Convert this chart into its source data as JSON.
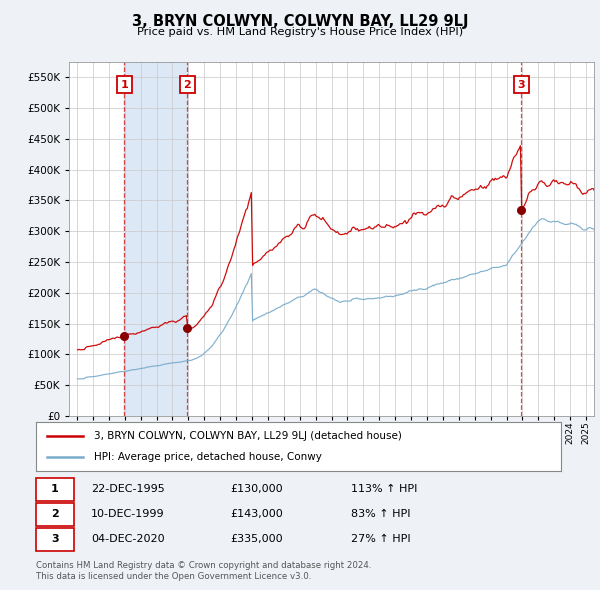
{
  "title": "3, BRYN COLWYN, COLWYN BAY, LL29 9LJ",
  "subtitle": "Price paid vs. HM Land Registry's House Price Index (HPI)",
  "legend_label_red": "3, BRYN COLWYN, COLWYN BAY, LL29 9LJ (detached house)",
  "legend_label_blue": "HPI: Average price, detached house, Conwy",
  "transactions": [
    {
      "num": 1,
      "date": "22-DEC-1995",
      "price": 130000,
      "hpi_pct": "113%",
      "direction": "↑"
    },
    {
      "num": 2,
      "date": "10-DEC-1999",
      "price": 143000,
      "hpi_pct": "83%",
      "direction": "↑"
    },
    {
      "num": 3,
      "date": "04-DEC-2020",
      "price": 335000,
      "hpi_pct": "27%",
      "direction": "↑"
    }
  ],
  "t1": 1995.97,
  "t2": 1999.94,
  "t3": 2020.92,
  "p1": 130000,
  "p2": 143000,
  "p3": 335000,
  "footnote1": "Contains HM Land Registry data © Crown copyright and database right 2024.",
  "footnote2": "This data is licensed under the Open Government Licence v3.0.",
  "ylim": [
    0,
    575000
  ],
  "xlim_start": 1992.5,
  "xlim_end": 2025.5,
  "red_color": "#cc0000",
  "blue_color": "#7aaccc",
  "bg_color": "#eef2f7",
  "plot_bg": "#ffffff",
  "grid_color": "#c8c8c8",
  "shade_color": "#dce8f5",
  "marker_color": "#880000"
}
